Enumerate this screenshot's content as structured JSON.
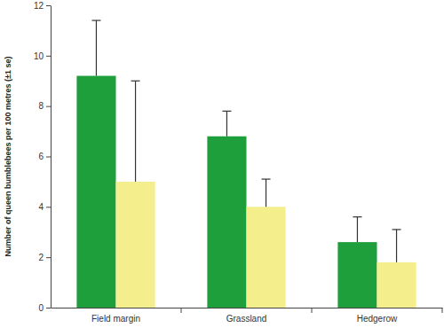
{
  "chart_data": {
    "type": "bar",
    "y_label": "Number of queen bumblebees per 100 metres (±1 se)",
    "categories": [
      "Field margin",
      "Grassland",
      "Hedgerow"
    ],
    "series": [
      {
        "color": "#1f9e3c",
        "values": [
          9.2,
          6.8,
          2.6
        ],
        "errors": [
          2.2,
          1.0,
          1.0
        ]
      },
      {
        "color": "#f4ef8c",
        "values": [
          5.0,
          4.0,
          1.8
        ],
        "errors": [
          4.0,
          1.1,
          1.3
        ]
      }
    ],
    "ylim": [
      0,
      12
    ],
    "yticks": [
      0,
      2,
      4,
      6,
      8,
      10,
      12
    ],
    "grid": false
  }
}
